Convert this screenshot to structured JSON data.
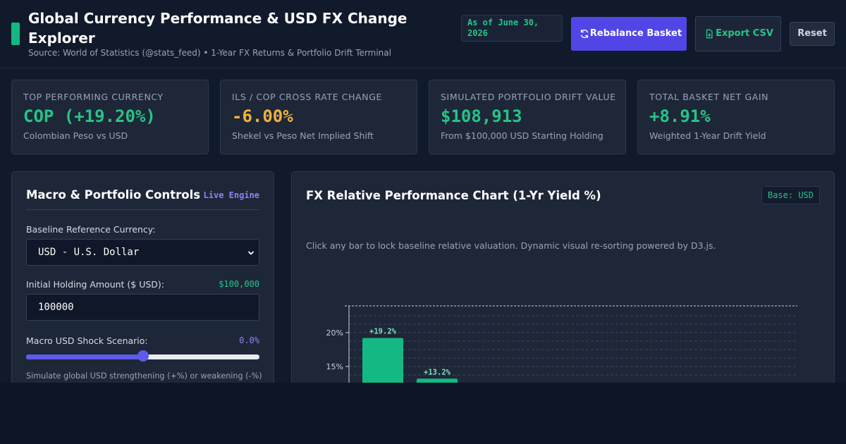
{
  "header": {
    "title": "Global Currency Performance & USD FX Change Explorer",
    "subtitle": "Source: World of Statistics (@stats_feed) • 1-Year FX Returns & Portfolio Drift Terminal",
    "date_chip": "As of June 30, 2026",
    "rebalance_label": "Rebalance Basket",
    "export_label": "Export CSV",
    "reset_label": "Reset"
  },
  "kpis": [
    {
      "label": "TOP PERFORMING CURRENCY",
      "value": "COP (+19.20%)",
      "sub": "Colombian Peso vs USD"
    },
    {
      "label": "ILS / COP CROSS RATE CHANGE",
      "value": "-6.00%",
      "sub": "Shekel vs Peso Net Implied Shift"
    },
    {
      "label": "SIMULATED PORTFOLIO DRIFT VALUE",
      "value": "$108,913",
      "sub": "From $100,000 USD Starting Holding"
    },
    {
      "label": "TOTAL BASKET NET GAIN",
      "value": "+8.91%",
      "sub": "Weighted 1-Year Drift Yield"
    }
  ],
  "controls": {
    "title": "Macro & Portfolio Controls",
    "live_tag": "Live Engine",
    "baseline_label": "Baseline Reference Currency:",
    "baseline_value": "USD - U.S. Dollar",
    "holding_label": "Initial Holding Amount ($ USD):",
    "holding_display": "$100,000",
    "holding_value": "100000",
    "shock_label": "Macro USD Shock Scenario:",
    "shock_display": "0.0%",
    "shock_fraction": 0.5,
    "hint": "Simulate global USD strengthening (+%) or weakening (-%)"
  },
  "chart": {
    "title": "FX Relative Performance Chart (1-Yr Yield %)",
    "base_chip": "Base: USD",
    "note": "Click any bar to lock baseline relative valuation. Dynamic visual re-sorting powered by D3.js."
  },
  "chart_data": {
    "type": "bar",
    "categories": [
      "",
      ""
    ],
    "values": [
      19.2,
      13.2
    ],
    "data_labels": [
      "+19.2%",
      "+13.2%"
    ],
    "y_ticks": [
      {
        "value": 20,
        "label": "20%"
      },
      {
        "value": 15,
        "label": "15%"
      }
    ],
    "grid": true,
    "colors": {
      "bar": "#14b883",
      "label": "#7be3bd"
    }
  },
  "colors": {
    "accent": "#14b883",
    "primary": "#5146e5",
    "warning": "#f2b13b"
  },
  "icons": {
    "rebalance": "refresh-icon",
    "export": "file-download-icon",
    "select": "chevron-down-icon"
  }
}
